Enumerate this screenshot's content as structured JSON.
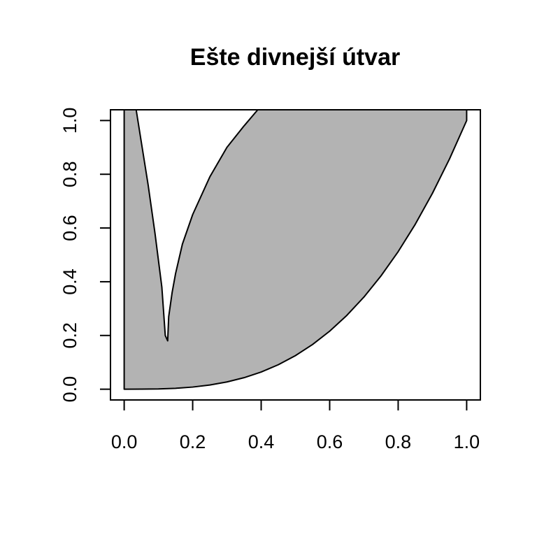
{
  "chart_data": {
    "type": "area",
    "title": "Ešte divnejší útvar",
    "xlabel": "",
    "ylabel": "",
    "xlim": [
      -0.04,
      1.04
    ],
    "ylim": [
      -0.04,
      1.04
    ],
    "x_ticks": [
      0.0,
      0.2,
      0.4,
      0.6,
      0.8,
      1.0
    ],
    "x_tick_labels": [
      "0.0",
      "0.2",
      "0.4",
      "0.6",
      "0.8",
      "1.0"
    ],
    "y_ticks": [
      0.0,
      0.2,
      0.4,
      0.6,
      0.8,
      1.0
    ],
    "y_tick_labels": [
      "0.0",
      "0.2",
      "0.4",
      "0.6",
      "0.8",
      "1.0"
    ],
    "grid": false,
    "box": true,
    "fill_color": "#b3b3b3",
    "stroke_color": "#000000",
    "shape_boundary": [
      [
        0.0,
        0.0
      ],
      [
        0.05,
        0.0002
      ],
      [
        0.1,
        0.001
      ],
      [
        0.15,
        0.0034
      ],
      [
        0.2,
        0.008
      ],
      [
        0.25,
        0.0156
      ],
      [
        0.3,
        0.027
      ],
      [
        0.35,
        0.0429
      ],
      [
        0.4,
        0.064
      ],
      [
        0.45,
        0.0911
      ],
      [
        0.5,
        0.125
      ],
      [
        0.55,
        0.1664
      ],
      [
        0.6,
        0.216
      ],
      [
        0.65,
        0.2746
      ],
      [
        0.7,
        0.343
      ],
      [
        0.75,
        0.4219
      ],
      [
        0.8,
        0.512
      ],
      [
        0.85,
        0.6141
      ],
      [
        0.9,
        0.729
      ],
      [
        0.95,
        0.8574
      ],
      [
        1.0,
        1.0
      ],
      [
        1.0,
        1.04
      ],
      [
        0.39,
        1.04
      ],
      [
        0.35,
        0.98
      ],
      [
        0.3,
        0.9
      ],
      [
        0.25,
        0.79
      ],
      [
        0.2,
        0.65
      ],
      [
        0.17,
        0.54
      ],
      [
        0.15,
        0.43
      ],
      [
        0.14,
        0.36
      ],
      [
        0.13,
        0.27
      ],
      [
        0.127,
        0.18
      ],
      [
        0.12,
        0.2
      ],
      [
        0.11,
        0.38
      ],
      [
        0.09,
        0.58
      ],
      [
        0.07,
        0.76
      ],
      [
        0.05,
        0.92
      ],
      [
        0.035,
        1.04
      ],
      [
        0.0,
        1.04
      ],
      [
        0.0,
        0.0
      ]
    ]
  }
}
